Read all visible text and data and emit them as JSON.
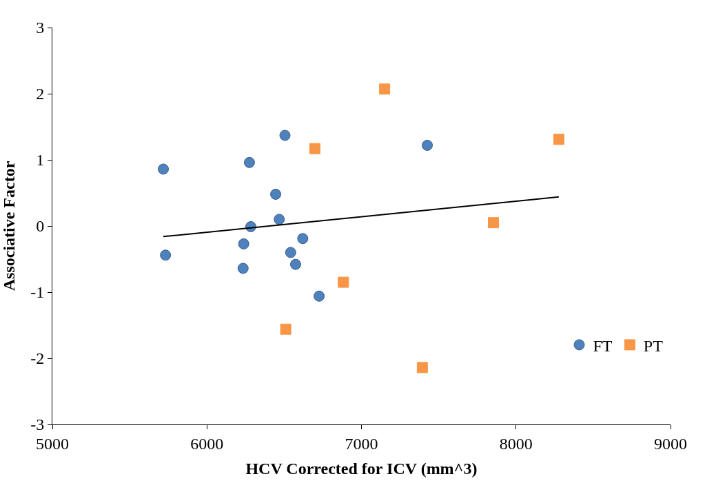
{
  "chart_data": {
    "type": "scatter",
    "xlabel": "HCV Corrected for ICV (mm^3)",
    "ylabel": "Associative Factor",
    "xlim": [
      5000,
      9000
    ],
    "xticks": [
      5000,
      6000,
      7000,
      8000,
      9000
    ],
    "ylim": [
      -3,
      3
    ],
    "yticks": [
      -3,
      -2,
      -1,
      0,
      1,
      2,
      3
    ],
    "legend": "right",
    "series": [
      {
        "name": "FT",
        "color": "#4f81bd",
        "marker": "circle",
        "x": [
          5718,
          5732,
          6275,
          6284,
          6238,
          6234,
          6445,
          6468,
          6505,
          6542,
          6574,
          6620,
          6726,
          7426
        ],
        "values": [
          0.86,
          -0.44,
          0.96,
          -0.01,
          -0.27,
          -0.64,
          0.48,
          0.1,
          1.37,
          -0.4,
          -0.58,
          -0.19,
          -1.06,
          1.22
        ]
      },
      {
        "name": "PT",
        "color": "#f79646",
        "marker": "square",
        "x": [
          7150,
          6698,
          8277,
          7854,
          6883,
          6510,
          7394
        ],
        "values": [
          2.07,
          1.17,
          1.31,
          0.05,
          -0.85,
          -1.56,
          -2.14
        ]
      },
      {
        "type": "line",
        "color": "#000000",
        "marker": "none",
        "x": [
          5718,
          8277
        ],
        "values": [
          -0.16,
          0.44
        ]
      }
    ]
  }
}
